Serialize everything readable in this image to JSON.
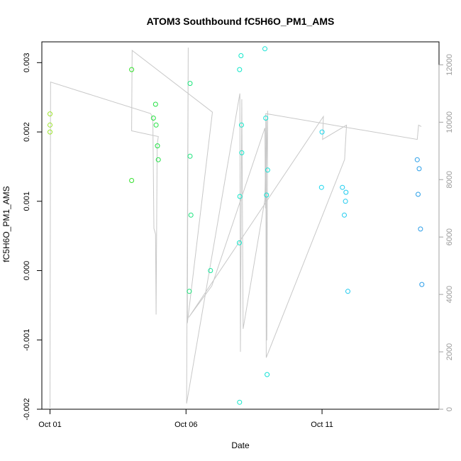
{
  "chart_data": {
    "type": "scatter",
    "title": "ATOM3 Southbound fC5H6O_PM1_AMS",
    "xlabel": "Date",
    "ylabel": "fC5H6O_PM1_AMS",
    "x_unit": "days",
    "x_origin_label": "Oct 01",
    "xlim": [
      -0.3,
      14.3
    ],
    "ylim": [
      -0.002,
      0.0033
    ],
    "y2lim": [
      0,
      12800
    ],
    "x_ticks": [
      {
        "x": 0,
        "label": "Oct 01"
      },
      {
        "x": 5,
        "label": "Oct 06"
      },
      {
        "x": 10,
        "label": "Oct 11"
      }
    ],
    "y_ticks": [
      {
        "y": -0.002,
        "label": "-0.002"
      },
      {
        "y": -0.001,
        "label": "-0.001"
      },
      {
        "y": 0.0,
        "label": "0.000"
      },
      {
        "y": 0.001,
        "label": "0.001"
      },
      {
        "y": 0.002,
        "label": "0.002"
      },
      {
        "y": 0.003,
        "label": "0.003"
      }
    ],
    "y2_ticks": [
      {
        "y": 0,
        "label": "0"
      },
      {
        "y": 2000,
        "label": "2000"
      },
      {
        "y": 4000,
        "label": "4000"
      },
      {
        "y": 6000,
        "label": "6000"
      },
      {
        "y": 8000,
        "label": "8000"
      },
      {
        "y": 10000,
        "label": "10000"
      },
      {
        "y": 12000,
        "label": "12000"
      }
    ],
    "colors": {
      "line": "#c8c8c8",
      "point_gradient": [
        "#9ee62e",
        "#24e02c",
        "#10e8c8",
        "#1ad4f0",
        "#2a9ce8"
      ],
      "axis": "#000000",
      "right_axis": "#a0a0a0"
    },
    "points": [
      {
        "x": 0.0,
        "y": 0.00226
      },
      {
        "x": 0.0,
        "y": 0.0021
      },
      {
        "x": 0.0,
        "y": 0.002
      },
      {
        "x": 3.0,
        "y": 0.0029
      },
      {
        "x": 3.0,
        "y": 0.0013
      },
      {
        "x": 3.8,
        "y": 0.0022
      },
      {
        "x": 3.88,
        "y": 0.0024
      },
      {
        "x": 3.9,
        "y": 0.0021
      },
      {
        "x": 3.95,
        "y": 0.0018
      },
      {
        "x": 3.98,
        "y": 0.0016
      },
      {
        "x": 5.15,
        "y": 0.0027
      },
      {
        "x": 5.15,
        "y": 0.00165
      },
      {
        "x": 5.18,
        "y": 0.0008
      },
      {
        "x": 5.12,
        "y": -0.0003
      },
      {
        "x": 5.9,
        "y": 0.0
      },
      {
        "x": 6.97,
        "y": 0.0029
      },
      {
        "x": 7.02,
        "y": 0.0031
      },
      {
        "x": 7.04,
        "y": 0.0021
      },
      {
        "x": 7.05,
        "y": 0.0017
      },
      {
        "x": 6.98,
        "y": 0.00107
      },
      {
        "x": 6.96,
        "y": 0.0004
      },
      {
        "x": 6.97,
        "y": -0.0019
      },
      {
        "x": 7.9,
        "y": 0.0032
      },
      {
        "x": 7.93,
        "y": 0.0022
      },
      {
        "x": 8.0,
        "y": 0.00145
      },
      {
        "x": 7.96,
        "y": 0.00109
      },
      {
        "x": 7.98,
        "y": -0.0015
      },
      {
        "x": 10.0,
        "y": 0.002
      },
      {
        "x": 9.98,
        "y": 0.0012
      },
      {
        "x": 10.75,
        "y": 0.0012
      },
      {
        "x": 10.88,
        "y": 0.00113
      },
      {
        "x": 10.86,
        "y": 0.001
      },
      {
        "x": 10.82,
        "y": 0.0008
      },
      {
        "x": 10.95,
        "y": -0.0003
      },
      {
        "x": 13.5,
        "y": 0.0016
      },
      {
        "x": 13.57,
        "y": 0.00147
      },
      {
        "x": 13.53,
        "y": 0.0011
      },
      {
        "x": 13.62,
        "y": 0.0006
      },
      {
        "x": 13.67,
        "y": -0.0002
      }
    ],
    "right_axis_series": [
      {
        "x": 0.0,
        "y": 50
      },
      {
        "x": 0.02,
        "y": 11400
      },
      {
        "x": 3.7,
        "y": 10300
      },
      {
        "x": 3.78,
        "y": 10150
      },
      {
        "x": 3.82,
        "y": 6300
      },
      {
        "x": 3.88,
        "y": 6100
      },
      {
        "x": 3.9,
        "y": 3300
      },
      {
        "x": 3.94,
        "y": 9200
      },
      {
        "x": 3.98,
        "y": 9500
      },
      {
        "x": 3.0,
        "y": 9700
      },
      {
        "x": 3.02,
        "y": 12500
      },
      {
        "x": 5.97,
        "y": 10350
      },
      {
        "x": 5.05,
        "y": 3000
      },
      {
        "x": 5.08,
        "y": 12600
      },
      {
        "x": 5.02,
        "y": 200
      },
      {
        "x": 6.98,
        "y": 11000
      },
      {
        "x": 7.0,
        "y": 2000
      },
      {
        "x": 7.05,
        "y": 10800
      },
      {
        "x": 7.1,
        "y": 2800
      },
      {
        "x": 7.9,
        "y": 7300
      },
      {
        "x": 7.95,
        "y": 10100
      },
      {
        "x": 7.97,
        "y": 2400
      },
      {
        "x": 8.0,
        "y": 10400
      },
      {
        "x": 7.92,
        "y": 7000
      },
      {
        "x": 7.9,
        "y": 9800
      },
      {
        "x": 5.95,
        "y": 4300
      },
      {
        "x": 5.1,
        "y": 3200
      },
      {
        "x": 10.05,
        "y": 10200
      },
      {
        "x": 10.02,
        "y": 9400
      },
      {
        "x": 10.9,
        "y": 9900
      },
      {
        "x": 10.85,
        "y": 9100
      },
      {
        "x": 10.83,
        "y": 8700
      },
      {
        "x": 7.95,
        "y": 1800
      },
      {
        "x": 7.93,
        "y": 10300
      },
      {
        "x": 13.5,
        "y": 9400
      },
      {
        "x": 13.55,
        "y": 9900
      },
      {
        "x": 13.65,
        "y": 9850
      }
    ]
  }
}
